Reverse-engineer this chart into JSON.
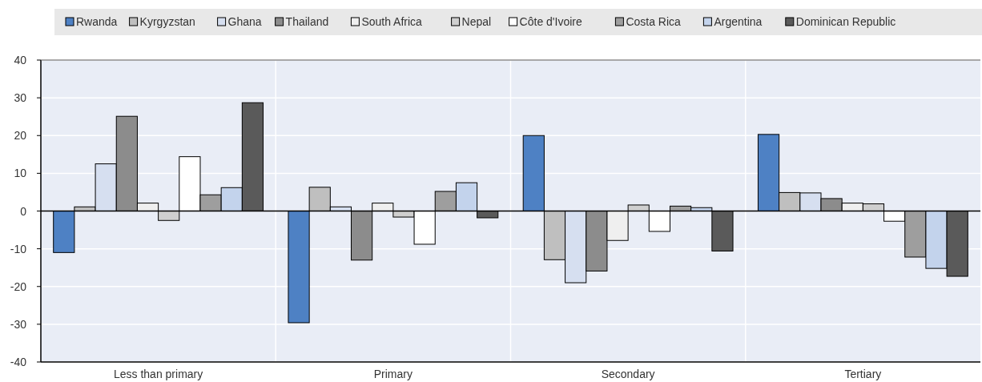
{
  "chart_data": {
    "type": "bar",
    "categories": [
      "Less than primary",
      "Primary",
      "Secondary",
      "Tertiary"
    ],
    "series": [
      {
        "name": "Rwanda",
        "color": "#4e81c4",
        "values": [
          -11,
          -29.6,
          20,
          20.3
        ]
      },
      {
        "name": "Kyrgyzstan",
        "color": "#bfbfbf",
        "values": [
          1.1,
          6.3,
          -12.9,
          4.9
        ]
      },
      {
        "name": "Ghana",
        "color": "#d6dff0",
        "values": [
          12.5,
          1.1,
          -19,
          4.8
        ]
      },
      {
        "name": "Thailand",
        "color": "#8c8c8c",
        "values": [
          25.1,
          -13,
          -15.9,
          3.3
        ]
      },
      {
        "name": "South Africa",
        "color": "#efefef",
        "values": [
          2.1,
          2.1,
          -7.8,
          2.1
        ]
      },
      {
        "name": "Nepal",
        "color": "#cfcfcf",
        "values": [
          -2.5,
          -1.6,
          1.6,
          1.9
        ]
      },
      {
        "name": "Côte d'Ivoire",
        "color": "#ffffff",
        "values": [
          14.4,
          -8.8,
          -5.4,
          -2.7
        ]
      },
      {
        "name": "Costa Rica",
        "color": "#9e9e9e",
        "values": [
          4.3,
          5.2,
          1.3,
          -12.2
        ]
      },
      {
        "name": "Argentina",
        "color": "#c3d3ec",
        "values": [
          6.2,
          7.5,
          0.9,
          -15.2
        ]
      },
      {
        "name": "Dominican Republic",
        "color": "#5a5a5a",
        "values": [
          28.7,
          -1.8,
          -10.6,
          -17.3
        ]
      }
    ],
    "ylim": [
      -40,
      40
    ],
    "yticks": [
      -40,
      -30,
      -20,
      -10,
      0,
      10,
      20,
      30,
      40
    ],
    "grid": true,
    "legend": "top"
  }
}
